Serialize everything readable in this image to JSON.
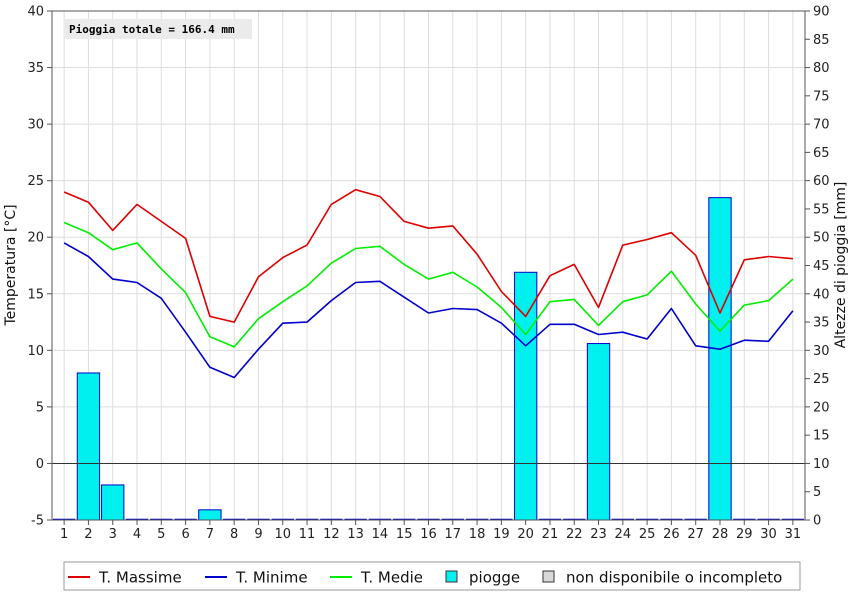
{
  "chart_data": {
    "type": "combo",
    "annotation": "Pioggia totale = 166.4 mm",
    "ylabel_left": "Temperatura [°C]",
    "ylabel_right": "Altezze di pioggia [mm]",
    "ylim_left": [
      -5,
      40
    ],
    "ylim_right": [
      0,
      90
    ],
    "yticks_left": [
      -5,
      0,
      5,
      10,
      15,
      20,
      25,
      30,
      35,
      40
    ],
    "yticks_right": [
      0,
      5,
      10,
      15,
      20,
      25,
      30,
      35,
      40,
      45,
      50,
      55,
      60,
      65,
      70,
      75,
      80,
      85,
      90
    ],
    "x": [
      "1",
      "2",
      "3",
      "4",
      "5",
      "6",
      "7",
      "8",
      "9",
      "10",
      "11",
      "12",
      "13",
      "14",
      "15",
      "16",
      "17",
      "18",
      "19",
      "20",
      "21",
      "22",
      "23",
      "24",
      "25",
      "26",
      "27",
      "28",
      "29",
      "30",
      "31"
    ],
    "grid": true,
    "legend_placement": "bottom",
    "series": [
      {
        "name": "T. Massime",
        "type": "line",
        "axis": "left",
        "color": "#dd0000",
        "values": [
          24.0,
          23.1,
          20.6,
          22.9,
          21.4,
          19.9,
          13.0,
          12.5,
          16.5,
          18.2,
          19.3,
          22.9,
          24.2,
          23.6,
          21.4,
          20.8,
          21.0,
          18.5,
          15.2,
          13.0,
          16.6,
          17.6,
          13.8,
          19.3,
          19.8,
          20.4,
          18.4,
          13.3,
          18.0,
          18.3,
          18.1
        ]
      },
      {
        "name": "T. Minime",
        "type": "line",
        "axis": "left",
        "color": "#0000cc",
        "values": [
          19.5,
          18.3,
          16.3,
          16.0,
          14.6,
          11.6,
          8.5,
          7.6,
          10.1,
          12.4,
          12.5,
          14.4,
          16.0,
          16.1,
          14.7,
          13.3,
          13.7,
          13.6,
          12.4,
          10.4,
          12.3,
          12.3,
          11.4,
          11.6,
          11.0,
          13.7,
          10.4,
          10.1,
          10.9,
          10.8,
          13.5
        ]
      },
      {
        "name": "T. Medie",
        "type": "line",
        "axis": "left",
        "color": "#00ee00",
        "values": [
          21.3,
          20.4,
          18.9,
          19.5,
          17.2,
          15.1,
          11.2,
          10.3,
          12.8,
          14.3,
          15.7,
          17.7,
          19.0,
          19.2,
          17.6,
          16.3,
          16.9,
          15.6,
          13.8,
          11.4,
          14.3,
          14.5,
          12.2,
          14.3,
          14.9,
          17.0,
          14.1,
          11.7,
          14.0,
          14.4,
          16.3
        ]
      },
      {
        "name": "piogge",
        "type": "bar",
        "axis": "right",
        "color": "#00f0f0",
        "values": [
          0,
          26.0,
          6.2,
          0,
          0,
          0,
          1.8,
          0,
          0,
          0,
          0,
          0,
          0,
          0,
          0,
          0,
          0,
          0,
          0,
          43.8,
          0,
          0,
          31.2,
          0,
          0,
          0,
          0,
          57.0,
          0,
          0,
          0
        ]
      }
    ],
    "legend": [
      {
        "label": "T. Massime",
        "kind": "line",
        "color": "#dd0000"
      },
      {
        "label": "T. Minime",
        "kind": "line",
        "color": "#0000cc"
      },
      {
        "label": "T. Medie",
        "kind": "line",
        "color": "#00ee00"
      },
      {
        "label": "piogge",
        "kind": "box",
        "color": "#00f0f0"
      },
      {
        "label": "non disponibile o incompleto",
        "kind": "box",
        "color": "#d8d8d8"
      }
    ]
  }
}
